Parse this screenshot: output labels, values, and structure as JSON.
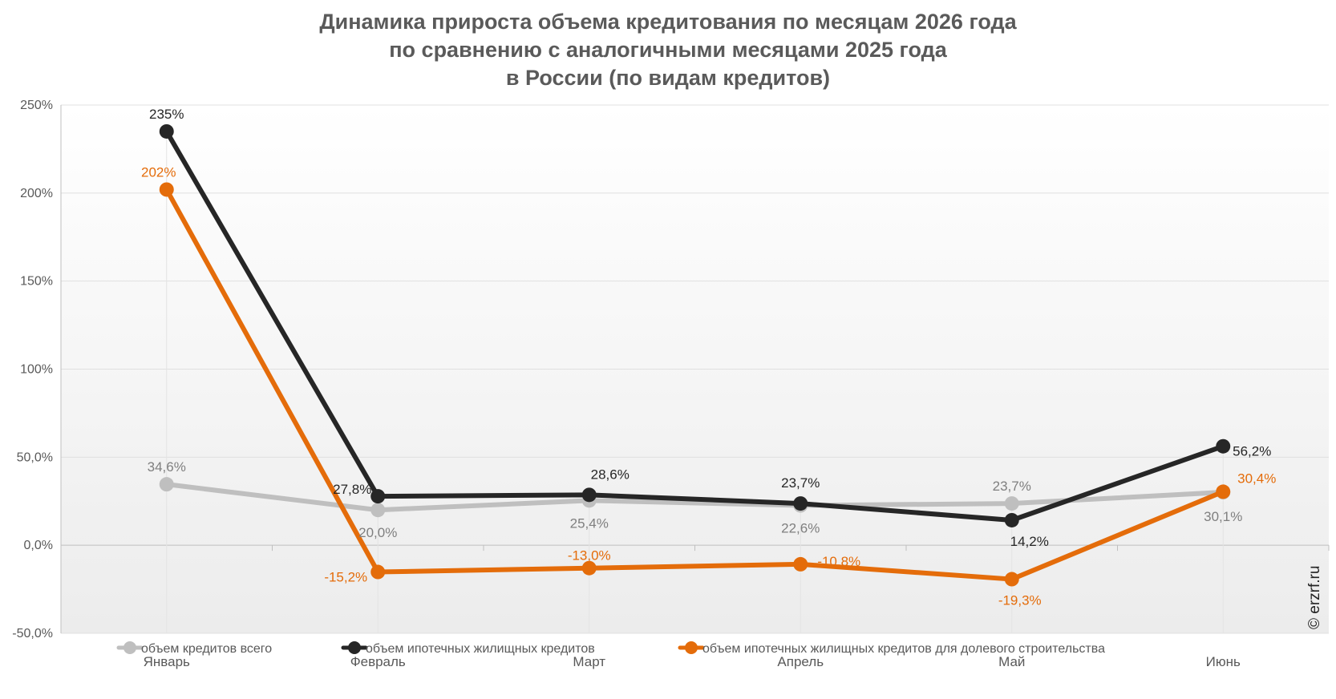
{
  "chart_data": {
    "type": "line",
    "title": [
      "Динамика прироста объема кредитования по месяцам 2026 года",
      "по сравнению с аналогичными месяцами 2025 года",
      "в России (по видам кредитов)"
    ],
    "categories": [
      "Январь",
      "Февраль",
      "Март",
      "Апрель",
      "Май",
      "Июнь"
    ],
    "ylim": [
      -50,
      250
    ],
    "yticks": [
      250,
      200,
      150,
      100,
      50,
      0,
      -50
    ],
    "ytick_labels": [
      "250%",
      "200%",
      "150%",
      "100%",
      "50,0%",
      "0,0%",
      "-50,0%"
    ],
    "grid": true,
    "legend_position": "bottom",
    "series": [
      {
        "name": "объем кредитов всего",
        "color": "#bfbfbf",
        "values": [
          34.6,
          20.0,
          25.4,
          22.6,
          23.7,
          30.1
        ],
        "labels": [
          "34,6%",
          "20,0%",
          "25,4%",
          "22,6%",
          "23,7%",
          "30,1%"
        ]
      },
      {
        "name": "объем ипотечных жилищных кредитов",
        "color": "#262626",
        "values": [
          235,
          27.8,
          28.6,
          23.7,
          14.2,
          56.2
        ],
        "labels": [
          "235%",
          "27,8%",
          "28,6%",
          "23,7%",
          "14,2%",
          "56,2%"
        ]
      },
      {
        "name": "объем ипотечных жилищных кредитов для долевого строительства",
        "color": "#e46c0a",
        "values": [
          202,
          -15.2,
          -13.0,
          -10.8,
          -19.3,
          30.4
        ],
        "labels": [
          "202%",
          "-15,2%",
          "-13,0%",
          "-10,8%",
          "-19,3%",
          "30,4%"
        ]
      }
    ]
  },
  "watermark": "© erzrf.ru"
}
